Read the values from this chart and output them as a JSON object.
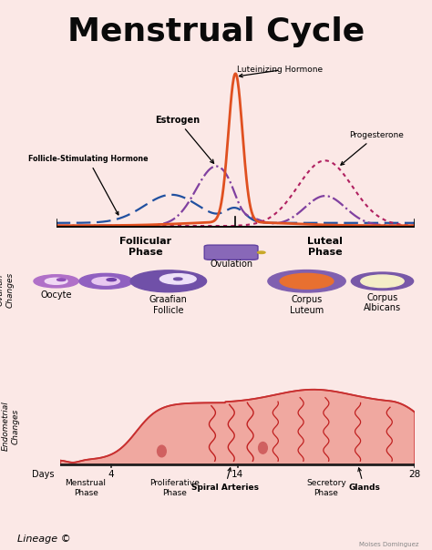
{
  "title": "Menstrual Cycle",
  "bg_color": "#fbe8e6",
  "title_fontsize": 26,
  "title_fontweight": "bold",
  "hormone_colors": {
    "LH": "#e05020",
    "estrogen": "#8040a0",
    "FSH": "#2050a0",
    "progesterone": "#b02060"
  },
  "footnote": "Lineage ©",
  "watermark": "Moises Dominguez"
}
